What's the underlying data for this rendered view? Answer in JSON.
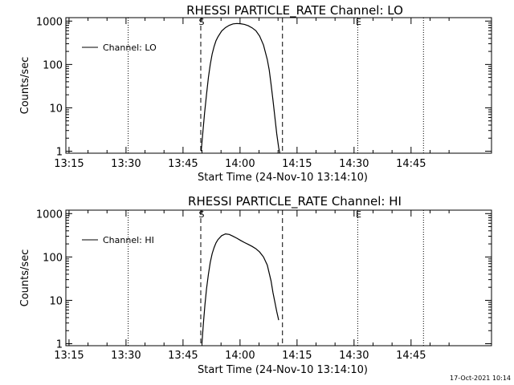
{
  "footer_timestamp": "17-Oct-2021 10:14",
  "chart_data": [
    {
      "type": "line",
      "title": "RHESSI PARTICLE_RATE Channel: LO",
      "xlabel": "Start Time (24-Nov-10 13:14:10)",
      "ylabel": "Counts/sec",
      "yscale": "log",
      "ylim": [
        0.9,
        1200
      ],
      "xlim_minutes": [
        0,
        112
      ],
      "x_tick_labels": [
        "13:15",
        "13:30",
        "13:45",
        "14:00",
        "14:15",
        "14:30",
        "14:45"
      ],
      "x_tick_minutes": [
        0.83,
        15.83,
        30.83,
        45.83,
        60.83,
        75.83,
        90.83
      ],
      "y_tick_labels": [
        "1",
        "10",
        "100",
        "1000"
      ],
      "y_tick_values": [
        1,
        10,
        100,
        1000
      ],
      "legend": "Channel: LO",
      "legend_position": "top-left",
      "markers": [
        {
          "label": "S",
          "minute": 35.5,
          "style": "dashed"
        },
        {
          "label": "",
          "minute": 57.0,
          "style": "dashed"
        },
        {
          "label": "",
          "minute": 16.4,
          "style": "dotted"
        },
        {
          "label": "E",
          "minute": 76.8,
          "style": "dotted"
        },
        {
          "label": "",
          "minute": 94.1,
          "style": "dotted"
        }
      ],
      "series": [
        {
          "name": "Channel: LO",
          "x_minutes": [
            35.6,
            36.0,
            36.5,
            37.0,
            37.5,
            38.0,
            38.5,
            39.0,
            39.5,
            40.0,
            41.0,
            42.0,
            43.0,
            44.0,
            45.0,
            46.0,
            47.0,
            48.0,
            49.0,
            50.0,
            51.0,
            52.0,
            53.0,
            53.5,
            54.0,
            54.5,
            55.0,
            55.5,
            56.0,
            56.3
          ],
          "values": [
            1.0,
            2.5,
            7.5,
            20,
            50,
            100,
            175,
            260,
            350,
            430,
            590,
            710,
            800,
            860,
            880,
            870,
            840,
            780,
            700,
            600,
            450,
            280,
            130,
            75,
            35,
            15,
            6.0,
            2.5,
            1.2,
            0.9
          ]
        }
      ]
    },
    {
      "type": "line",
      "title": "RHESSI PARTICLE_RATE Channel: HI",
      "xlabel": "Start Time (24-Nov-10 13:14:10)",
      "ylabel": "Counts/sec",
      "yscale": "log",
      "ylim": [
        0.9,
        1200
      ],
      "xlim_minutes": [
        0,
        112
      ],
      "x_tick_labels": [
        "13:15",
        "13:30",
        "13:45",
        "14:00",
        "14:15",
        "14:30",
        "14:45"
      ],
      "x_tick_minutes": [
        0.83,
        15.83,
        30.83,
        45.83,
        60.83,
        75.83,
        90.83
      ],
      "y_tick_labels": [
        "1",
        "10",
        "100",
        "1000"
      ],
      "y_tick_values": [
        1,
        10,
        100,
        1000
      ],
      "legend": "Channel: HI",
      "legend_position": "top-left",
      "markers": [
        {
          "label": "S",
          "minute": 35.5,
          "style": "dashed"
        },
        {
          "label": "",
          "minute": 57.0,
          "style": "dashed"
        },
        {
          "label": "",
          "minute": 16.4,
          "style": "dotted"
        },
        {
          "label": "E",
          "minute": 76.8,
          "style": "dotted"
        },
        {
          "label": "",
          "minute": 94.1,
          "style": "dotted"
        }
      ],
      "series": [
        {
          "name": "Channel: HI",
          "x_minutes": [
            35.8,
            36.2,
            36.6,
            37.0,
            37.5,
            38.0,
            38.5,
            39.0,
            39.5,
            40.0,
            41.0,
            42.0,
            43.0,
            44.0,
            45.0,
            46.0,
            47.0,
            48.0,
            49.0,
            50.0,
            51.0,
            52.0,
            53.0,
            54.0,
            54.5,
            55.0,
            55.5,
            56.0
          ],
          "values": [
            1.0,
            3.0,
            8.0,
            18,
            40,
            75,
            120,
            165,
            210,
            250,
            310,
            340,
            330,
            300,
            270,
            240,
            215,
            195,
            175,
            155,
            130,
            100,
            65,
            28,
            15,
            9.0,
            5.5,
            3.5
          ]
        }
      ]
    }
  ]
}
